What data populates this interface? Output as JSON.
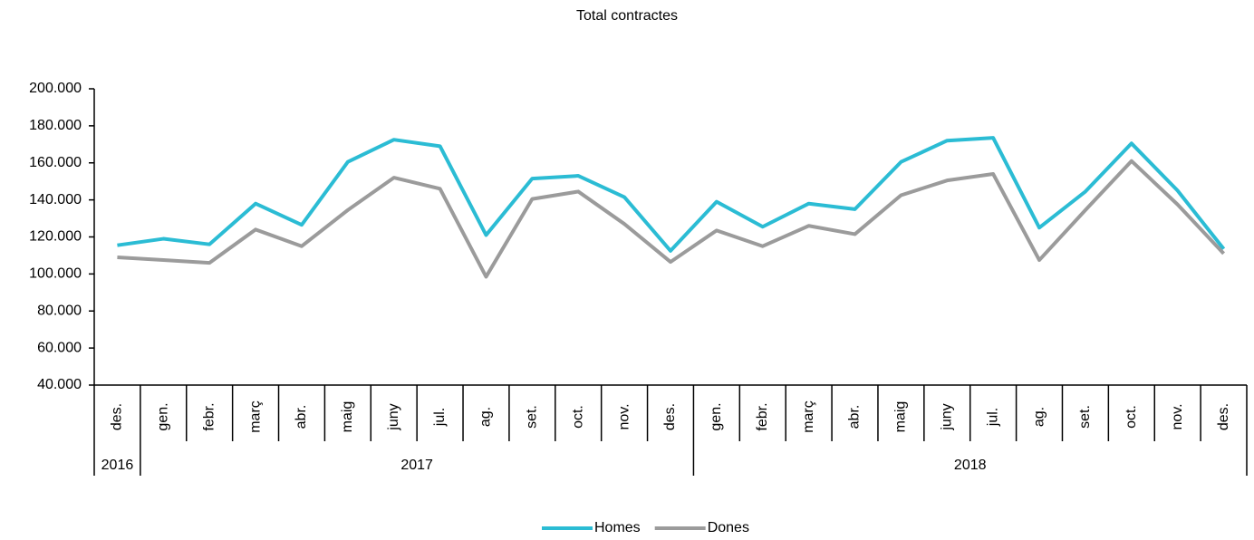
{
  "chart_data": {
    "type": "line",
    "title": "Total contractes",
    "groups": [
      {
        "label": "2016",
        "categories": [
          "des."
        ]
      },
      {
        "label": "2017",
        "categories": [
          "gen.",
          "febr.",
          "març",
          "abr.",
          "maig",
          "juny",
          "jul.",
          "ag.",
          "set.",
          "oct.",
          "nov.",
          "des."
        ]
      },
      {
        "label": "2018",
        "categories": [
          "gen.",
          "febr.",
          "març",
          "abr.",
          "maig",
          "juny",
          "jul.",
          "ag.",
          "set.",
          "oct.",
          "nov.",
          "des."
        ]
      }
    ],
    "series": [
      {
        "name": "Homes",
        "color": "#2bbcd4",
        "values": [
          115500,
          119000,
          116000,
          138000,
          126500,
          160500,
          172500,
          169000,
          121000,
          151500,
          153000,
          141500,
          112500,
          139000,
          125500,
          138000,
          135000,
          160500,
          172000,
          173500,
          125000,
          144500,
          170500,
          145000,
          113500
        ]
      },
      {
        "name": "Dones",
        "color": "#9b9b9b",
        "values": [
          109000,
          107500,
          106000,
          124000,
          115000,
          134500,
          152000,
          146000,
          98500,
          140500,
          144500,
          127000,
          106500,
          123500,
          115000,
          126000,
          121500,
          142500,
          150500,
          154000,
          107500,
          134500,
          161000,
          137500,
          111000
        ]
      }
    ],
    "ylim": [
      40000,
      200000
    ],
    "yticks": [
      {
        "value": 40000,
        "label": "40.000"
      },
      {
        "value": 60000,
        "label": "60.000"
      },
      {
        "value": 80000,
        "label": "80.000"
      },
      {
        "value": 100000,
        "label": "100.000"
      },
      {
        "value": 120000,
        "label": "120.000"
      },
      {
        "value": 140000,
        "label": "140.000"
      },
      {
        "value": 160000,
        "label": "160.000"
      },
      {
        "value": 180000,
        "label": "180.000"
      },
      {
        "value": 200000,
        "label": "200.000"
      }
    ],
    "legend": "bottom"
  }
}
